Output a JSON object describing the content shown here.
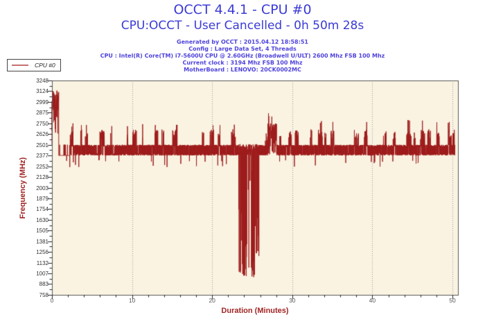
{
  "chart_data": {
    "type": "line",
    "title": "OCCT 4.4.1 - CPU #0",
    "subtitle": "CPU:OCCT - User Cancelled - 0h 50m 28s",
    "info_lines": [
      "Generated by OCCT : 2015.04.12 18:58:51",
      "Config : Large Data Set, 4 Threads",
      "CPU : Intel(R) Core(TM) i7-5600U CPU @ 2.60GHz (Broadwell U/ULT) 2600 Mhz FSB 100 Mhz",
      "Current clock : 3194 Mhz FSB 100 Mhz",
      "MotherBoard : LENOVO: 20CK0002MC"
    ],
    "legend": {
      "series": "CPU #0"
    },
    "xlabel": "Duration (Minutes)",
    "ylabel": "Frequency (MHz)",
    "xlim": [
      0,
      50.7
    ],
    "ylim": [
      758,
      3248
    ],
    "x_major_ticks": [
      0,
      10,
      20,
      30,
      40,
      50
    ],
    "x_minor_step": 2,
    "y_major_ticks": [
      3248,
      3124,
      2999,
      2875,
      2750,
      2626,
      2501,
      2377,
      2252,
      2128,
      2003,
      1879,
      1754,
      1630,
      1505,
      1381,
      1256,
      1132,
      1007,
      883,
      758
    ],
    "grid": "vertical-dotted-at-major-x",
    "legend_position": "top-left",
    "colors": {
      "series": "#9e1b1b",
      "legend_swatch": "#c4706f",
      "plot_bg": "#faf3e2",
      "frame": "#555555",
      "grid": "#999999",
      "tick": "#222222",
      "title_blue": "#3a3ad6",
      "info_blue": "#5044dc",
      "axis_label_red": "#a22424"
    },
    "series": [
      {
        "name": "CPU #0",
        "description": "CPU core frequency in MHz over 50.3 minutes; idle-boost burst ~2875-3130 MHz for first ~0.9 min, steady band oscillating 2377-2501 MHz with spike clusters to ~2626-2750 MHz, deep throttle needles down to ~945-1600 MHz between 23.3 and 25.9 min, boost block 2501-2885 MHz near 27-28 min, tall spike ~2790 MHz near 44 min",
        "segments": [
          {
            "t0": 0.0,
            "t1": 0.85,
            "mode": "burst",
            "lo": 2560,
            "hi": 3130
          },
          {
            "t0": 0.85,
            "t1": 2.2,
            "mode": "flat",
            "lo": 2377,
            "hi": 2501
          },
          {
            "t0": 2.2,
            "t1": 23.3,
            "mode": "baseline",
            "lo": 2377,
            "hi": 2501,
            "spike": 2680,
            "spike2": 2750
          },
          {
            "t0": 23.3,
            "t1": 25.85,
            "mode": "dip",
            "lo": 945,
            "hi": 2501
          },
          {
            "t0": 25.85,
            "t1": 26.95,
            "mode": "baseline",
            "lo": 2377,
            "hi": 2501,
            "spike": 2640
          },
          {
            "t0": 26.95,
            "t1": 28.05,
            "mode": "boost",
            "lo": 2377,
            "hi": 2885
          },
          {
            "t0": 28.05,
            "t1": 50.32,
            "mode": "baseline",
            "lo": 2377,
            "hi": 2501,
            "spike": 2680,
            "spike2": 2790
          }
        ]
      }
    ]
  }
}
